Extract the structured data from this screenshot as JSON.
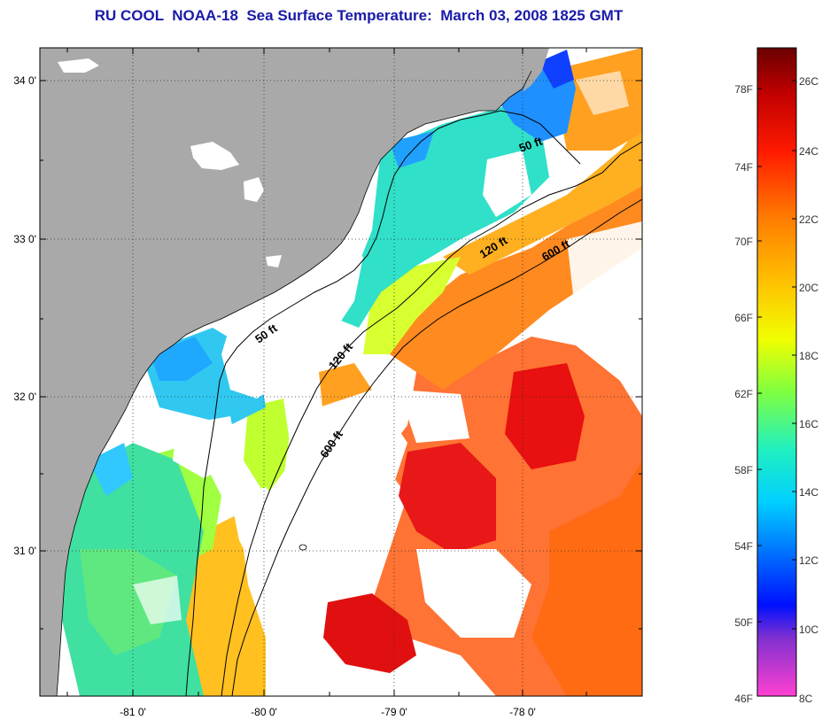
{
  "title": "RU COOL  NOAA-18  Sea Surface Temperature:  March 03, 2008 1825 GMT",
  "lat_ticks": [
    {
      "label": "34 0'",
      "lat": 34.0
    },
    {
      "label": "33 0'",
      "lat": 33.0
    },
    {
      "label": "32 0'",
      "lat": 32.0
    },
    {
      "label": "31 0'",
      "lat": 31.0
    }
  ],
  "lon_ticks": [
    {
      "label": "-81 0'",
      "lon": -81.0
    },
    {
      "label": "-80 0'",
      "lon": -80.0
    },
    {
      "label": "-79 0'",
      "lon": -79.0
    },
    {
      "label": "-78 0'",
      "lon": -78.0
    }
  ],
  "depth_contours": [
    {
      "label": "50 ft"
    },
    {
      "label": "50 ft"
    },
    {
      "label": "120 ft"
    },
    {
      "label": "120 ft"
    },
    {
      "label": "600 ft"
    },
    {
      "label": "600 ft"
    }
  ],
  "colorbar": {
    "fahrenheit": [
      "78F",
      "74F",
      "70F",
      "66F",
      "62F",
      "58F",
      "54F",
      "50F",
      "46F"
    ],
    "celsius": [
      "26C",
      "24C",
      "22C",
      "20C",
      "18C",
      "16C",
      "14C",
      "12C",
      "10C",
      "8C"
    ],
    "colors": [
      "#7a0000",
      "#e00000",
      "#ff5a00",
      "#ffa000",
      "#ffff00",
      "#80ff40",
      "#00e0e0",
      "#0080ff",
      "#0000ff",
      "#8020c0",
      "#ff40c0"
    ]
  },
  "colors": {
    "land": "#a9a9a9",
    "cloud": "#ffffff",
    "title": "#1a1aa8"
  }
}
